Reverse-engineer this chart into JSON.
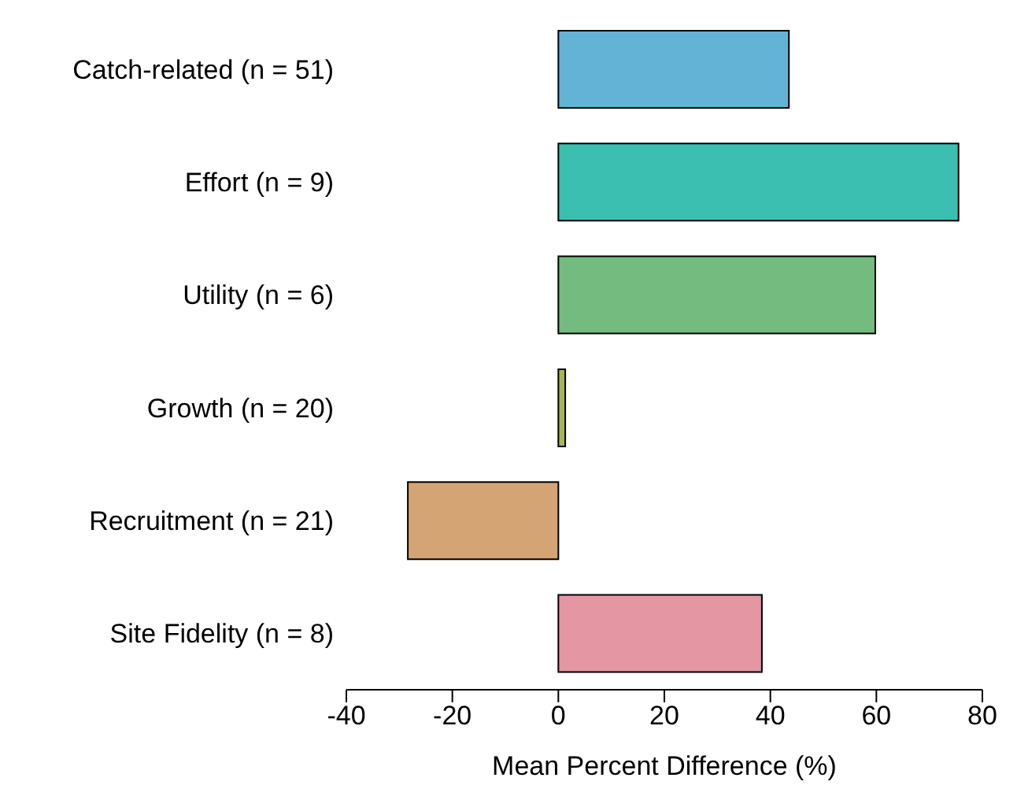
{
  "chart_data": {
    "type": "bar",
    "orientation": "horizontal",
    "xlabel": "Mean Percent Difference (%)",
    "categories": [
      "Catch-related (n = 51)",
      "Effort (n = 9)",
      "Utility (n = 6)",
      "Growth (n = 20)",
      "Recruitment (n = 21)",
      "Site Fidelity (n = 8)"
    ],
    "values": [
      43.5,
      75.5,
      59.8,
      1.3,
      -28.4,
      38.4
    ],
    "colors": [
      "#63b3d6",
      "#3bbfb0",
      "#73bb7f",
      "#a9b656",
      "#d4a475",
      "#e596a3"
    ],
    "xlim": [
      -40,
      80
    ],
    "xticks": [
      -40,
      -20,
      0,
      20,
      40,
      60,
      80
    ]
  }
}
